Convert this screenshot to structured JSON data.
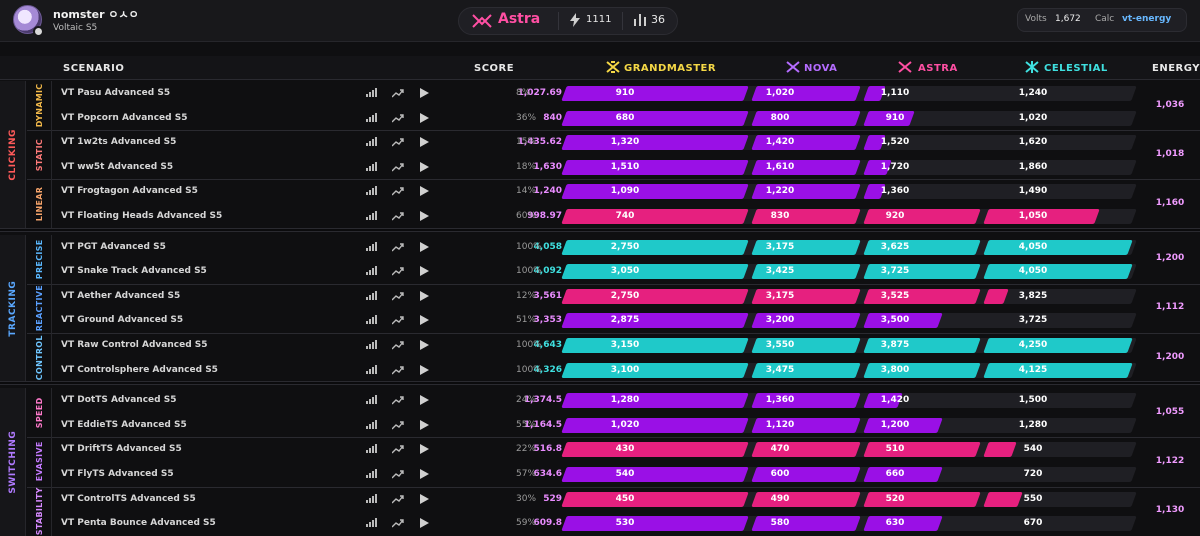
{
  "user": {
    "name": "nomster ㅇㅅㅇ",
    "season": "Voltaic S5"
  },
  "rank_summary": {
    "rank": "Astra",
    "energy_total": "1111",
    "rank_count": "36",
    "rank_color": "#ff4fa3"
  },
  "calc": {
    "volts_label": "Volts",
    "volts_value": "1,672",
    "calc_label": "Calc",
    "calc_value": "vt-energy"
  },
  "headers": {
    "scenario": "SCENARIO",
    "score": "SCORE",
    "grandmaster": "GRANDMASTER",
    "nova": "NOVA",
    "astra": "ASTRA",
    "celestial": "CELESTIAL",
    "energy": "ENERGY"
  },
  "colors": {
    "purple": "#9a10e6",
    "pink": "#e6207f",
    "teal": "#1fc9c9",
    "grandmaster": "#f5d846",
    "nova": "#b56cff",
    "astra": "#ff4fa3",
    "celestial": "#3fe0e0"
  },
  "groups": [
    {
      "label": "CLICKING",
      "color": "#ff5a5a",
      "subs": [
        {
          "label": "DYNAMIC",
          "color": "#f2b94a",
          "energy": "1,036"
        },
        {
          "label": "STATIC",
          "color": "#ff7a7a",
          "energy": "1,018"
        },
        {
          "label": "LINEAR",
          "color": "#f5a36a",
          "energy": "1,160"
        }
      ]
    },
    {
      "label": "TRACKING",
      "color": "#5aa8ff",
      "subs": [
        {
          "label": "PRECISE",
          "color": "#5ab8ff",
          "energy": "1,200"
        },
        {
          "label": "REACTIVE",
          "color": "#5aa0ff",
          "energy": "1,112"
        },
        {
          "label": "CONTROL",
          "color": "#6fc6ff",
          "energy": "1,200"
        }
      ]
    },
    {
      "label": "SWITCHING",
      "color": "#b07aff",
      "subs": [
        {
          "label": "SPEED",
          "color": "#ff7acb",
          "energy": "1,055"
        },
        {
          "label": "EVASIVE",
          "color": "#c47aff",
          "energy": "1,122"
        },
        {
          "label": "STABILITY",
          "color": "#d68aff",
          "energy": "1,130"
        }
      ]
    }
  ],
  "rows": [
    {
      "name": "VT Pasu Advanced S5",
      "score": "1,027.69",
      "pct": "8%",
      "tier": "purple",
      "fill": 0.56,
      "t": [
        "910",
        "1,020",
        "1,110",
        "1,240"
      ]
    },
    {
      "name": "VT Popcorn Advanced S5",
      "score": "840",
      "pct": "36%",
      "tier": "purple",
      "fill": 0.61,
      "t": [
        "680",
        "800",
        "910",
        "1,020"
      ]
    },
    {
      "name": "VT 1w2ts Advanced S5",
      "score": "1,435.62",
      "pct": "15%",
      "tier": "purple",
      "fill": 0.56,
      "t": [
        "1,320",
        "1,420",
        "1,520",
        "1,620"
      ]
    },
    {
      "name": "VT ww5t Advanced S5",
      "score": "1,630",
      "pct": "18%",
      "tier": "purple",
      "fill": 0.57,
      "t": [
        "1,510",
        "1,610",
        "1,720",
        "1,860"
      ]
    },
    {
      "name": "VT Frogtagon Advanced S5",
      "score": "1,240",
      "pct": "14%",
      "tier": "purple",
      "fill": 0.56,
      "t": [
        "1,090",
        "1,220",
        "1,360",
        "1,490"
      ]
    },
    {
      "name": "VT Floating Heads Advanced S5",
      "score": "998.97",
      "pct": "60%",
      "tier": "pink",
      "fill": 0.935,
      "t": [
        "740",
        "830",
        "920",
        "1,050"
      ]
    },
    {
      "name": "VT PGT Advanced S5",
      "score": "4,058",
      "pct": "100%",
      "tier": "teal",
      "fill": 1.0,
      "t": [
        "2,750",
        "3,175",
        "3,625",
        "4,050"
      ]
    },
    {
      "name": "VT Snake Track Advanced S5",
      "score": "4,092",
      "pct": "100%",
      "tier": "teal",
      "fill": 1.0,
      "t": [
        "3,050",
        "3,425",
        "3,725",
        "4,050"
      ]
    },
    {
      "name": "VT Aether Advanced S5",
      "score": "3,561",
      "pct": "12%",
      "tier": "pink",
      "fill": 0.775,
      "t": [
        "2,750",
        "3,175",
        "3,525",
        "3,825"
      ]
    },
    {
      "name": "VT Ground Advanced S5",
      "score": "3,353",
      "pct": "51%",
      "tier": "purple",
      "fill": 0.66,
      "t": [
        "2,875",
        "3,200",
        "3,500",
        "3,725"
      ]
    },
    {
      "name": "VT Raw Control Advanced S5",
      "score": "4,643",
      "pct": "100%",
      "tier": "teal",
      "fill": 1.0,
      "t": [
        "3,150",
        "3,550",
        "3,875",
        "4,250"
      ]
    },
    {
      "name": "VT Controlsphere Advanced S5",
      "score": "4,326",
      "pct": "100%",
      "tier": "teal",
      "fill": 1.0,
      "t": [
        "3,100",
        "3,475",
        "3,800",
        "4,125"
      ]
    },
    {
      "name": "VT DotTS Advanced S5",
      "score": "1,374.5",
      "pct": "24%",
      "tier": "purple",
      "fill": 0.59,
      "t": [
        "1,280",
        "1,360",
        "1,420",
        "1,500"
      ]
    },
    {
      "name": "VT EddieTS Advanced S5",
      "score": "1,164.5",
      "pct": "55%",
      "tier": "purple",
      "fill": 0.66,
      "t": [
        "1,020",
        "1,120",
        "1,200",
        "1,280"
      ]
    },
    {
      "name": "VT DriftTS Advanced S5",
      "score": "516.8",
      "pct": "22%",
      "tier": "pink",
      "fill": 0.79,
      "t": [
        "430",
        "470",
        "510",
        "540"
      ]
    },
    {
      "name": "VT FlyTS Advanced S5",
      "score": "634.6",
      "pct": "57%",
      "tier": "purple",
      "fill": 0.66,
      "t": [
        "540",
        "600",
        "660",
        "720"
      ]
    },
    {
      "name": "VT ControlTS Advanced S5",
      "score": "529",
      "pct": "30%",
      "tier": "pink",
      "fill": 0.8,
      "t": [
        "450",
        "490",
        "520",
        "550"
      ]
    },
    {
      "name": "VT Penta Bounce Advanced S5",
      "score": "609.8",
      "pct": "59%",
      "tier": "purple",
      "fill": 0.66,
      "t": [
        "530",
        "580",
        "630",
        "670"
      ]
    }
  ]
}
